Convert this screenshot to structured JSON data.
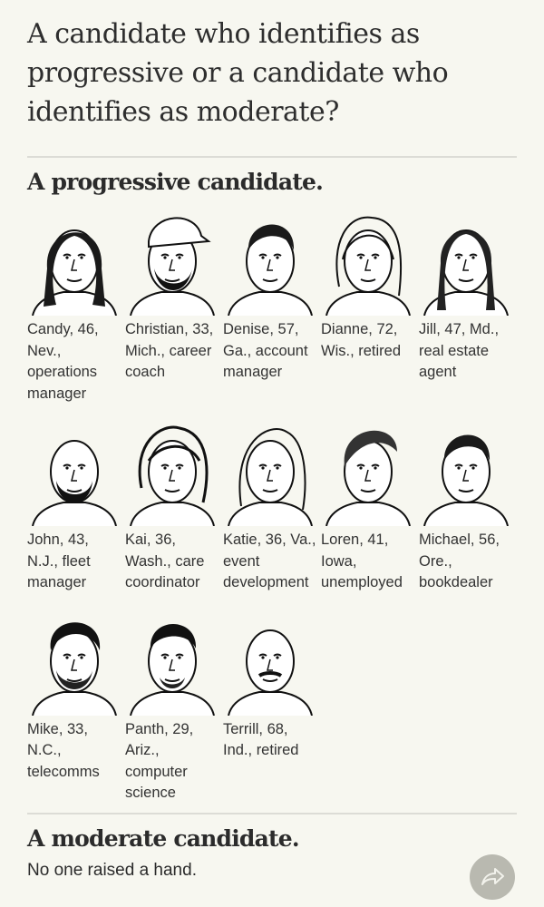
{
  "headline": "A candidate who identifies as progressive or a candidate who identifies as moderate?",
  "progressive": {
    "title": "A progressive candidate.",
    "people": [
      {
        "caption": "Candy, 46, Nev., operations manager",
        "hair": "long-dark"
      },
      {
        "caption": "Christian, 33, Mich., career coach",
        "hair": "cap-beard"
      },
      {
        "caption": "Denise, 57, Ga., account manager",
        "hair": "short-dark"
      },
      {
        "caption": "Dianne, 72, Wis., retired",
        "hair": "light-wavy"
      },
      {
        "caption": "Jill, 47, Md., real estate agent",
        "hair": "long-straight"
      },
      {
        "caption": "John, 43, N.J., fleet manager",
        "hair": "bald-beard"
      },
      {
        "caption": "Kai, 36, Wash., care coordinator",
        "hair": "wavy"
      },
      {
        "caption": "Katie, 36, Va., event development",
        "hair": "light-long"
      },
      {
        "caption": "Loren, 41, Iowa, unemployed",
        "hair": "swept"
      },
      {
        "caption": "Michael, 56, Ore., bookdealer",
        "hair": "short-dark"
      },
      {
        "caption": "Mike, 33, N.C., telecomms",
        "hair": "curly-beard"
      },
      {
        "caption": "Panth, 29, Ariz., computer science",
        "hair": "short-beard"
      },
      {
        "caption": "Terrill, 68, Ind., retired",
        "hair": "bald-mustache"
      }
    ]
  },
  "moderate": {
    "title": "A moderate candidate.",
    "text": "No one raised a hand."
  },
  "share_icon": "share-arrow-icon",
  "colors": {
    "background": "#f7f7f0",
    "share_button": "#b9b9b0"
  }
}
